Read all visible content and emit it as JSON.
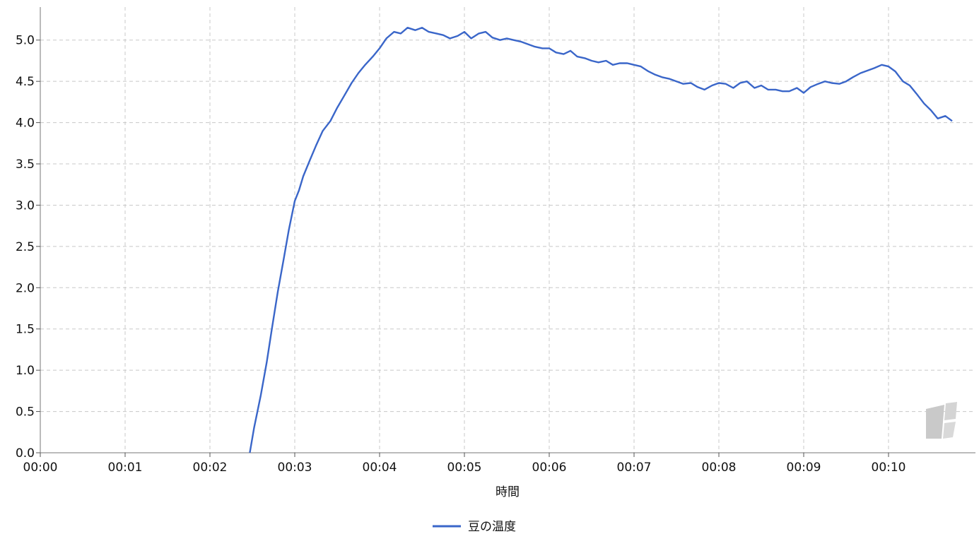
{
  "chart_data": {
    "type": "line",
    "title": "",
    "xlabel": "時間",
    "ylabel": "",
    "x_tick_labels": [
      "00:00",
      "00:01",
      "00:02",
      "00:03",
      "00:04",
      "00:05",
      "00:06",
      "00:07",
      "00:08",
      "00:09",
      "00:10"
    ],
    "y_tick_labels": [
      "0.0",
      "0.5",
      "1.0",
      "1.5",
      "2.0",
      "2.5",
      "3.0",
      "3.5",
      "4.0",
      "4.5",
      "5.0"
    ],
    "xlim_minutes": [
      0,
      10.85
    ],
    "ylim": [
      0,
      5.4
    ],
    "grid": true,
    "legend_position": "bottom-center",
    "series": [
      {
        "name": "豆の温度",
        "color": "#3a66c9",
        "x_minutes": [
          2.47,
          2.52,
          2.6,
          2.67,
          2.73,
          2.8,
          2.87,
          2.93,
          3.0,
          3.05,
          3.1,
          3.18,
          3.25,
          3.33,
          3.42,
          3.5,
          3.58,
          3.67,
          3.75,
          3.83,
          3.92,
          4.0,
          4.08,
          4.17,
          4.25,
          4.33,
          4.42,
          4.5,
          4.58,
          4.67,
          4.75,
          4.83,
          4.92,
          5.0,
          5.08,
          5.17,
          5.25,
          5.33,
          5.42,
          5.5,
          5.58,
          5.67,
          5.75,
          5.83,
          5.92,
          6.0,
          6.08,
          6.17,
          6.25,
          6.33,
          6.42,
          6.5,
          6.58,
          6.67,
          6.75,
          6.83,
          6.92,
          7.0,
          7.08,
          7.17,
          7.25,
          7.33,
          7.42,
          7.5,
          7.58,
          7.67,
          7.75,
          7.83,
          7.92,
          8.0,
          8.08,
          8.17,
          8.25,
          8.33,
          8.42,
          8.5,
          8.58,
          8.67,
          8.75,
          8.83,
          8.92,
          9.0,
          9.08,
          9.17,
          9.25,
          9.33,
          9.42,
          9.5,
          9.58,
          9.67,
          9.75,
          9.83,
          9.92,
          10.0,
          10.08,
          10.17,
          10.25,
          10.33,
          10.42,
          10.5,
          10.58,
          10.67,
          10.75
        ],
        "values": [
          0.0,
          0.3,
          0.7,
          1.1,
          1.5,
          1.95,
          2.35,
          2.7,
          3.05,
          3.18,
          3.35,
          3.55,
          3.72,
          3.9,
          4.02,
          4.18,
          4.32,
          4.48,
          4.6,
          4.7,
          4.8,
          4.9,
          5.02,
          5.1,
          5.08,
          5.15,
          5.12,
          5.15,
          5.1,
          5.08,
          5.06,
          5.02,
          5.05,
          5.1,
          5.02,
          5.08,
          5.1,
          5.03,
          5.0,
          5.02,
          5.0,
          4.98,
          4.95,
          4.92,
          4.9,
          4.9,
          4.85,
          4.83,
          4.87,
          4.8,
          4.78,
          4.75,
          4.73,
          4.75,
          4.7,
          4.72,
          4.72,
          4.7,
          4.68,
          4.62,
          4.58,
          4.55,
          4.53,
          4.5,
          4.47,
          4.48,
          4.43,
          4.4,
          4.45,
          4.48,
          4.47,
          4.42,
          4.48,
          4.5,
          4.42,
          4.45,
          4.4,
          4.4,
          4.38,
          4.38,
          4.42,
          4.36,
          4.43,
          4.47,
          4.5,
          4.48,
          4.47,
          4.5,
          4.55,
          4.6,
          4.63,
          4.66,
          4.7,
          4.68,
          4.62,
          4.5,
          4.45,
          4.35,
          4.23,
          4.15,
          4.05,
          4.08,
          4.02
        ]
      }
    ]
  }
}
